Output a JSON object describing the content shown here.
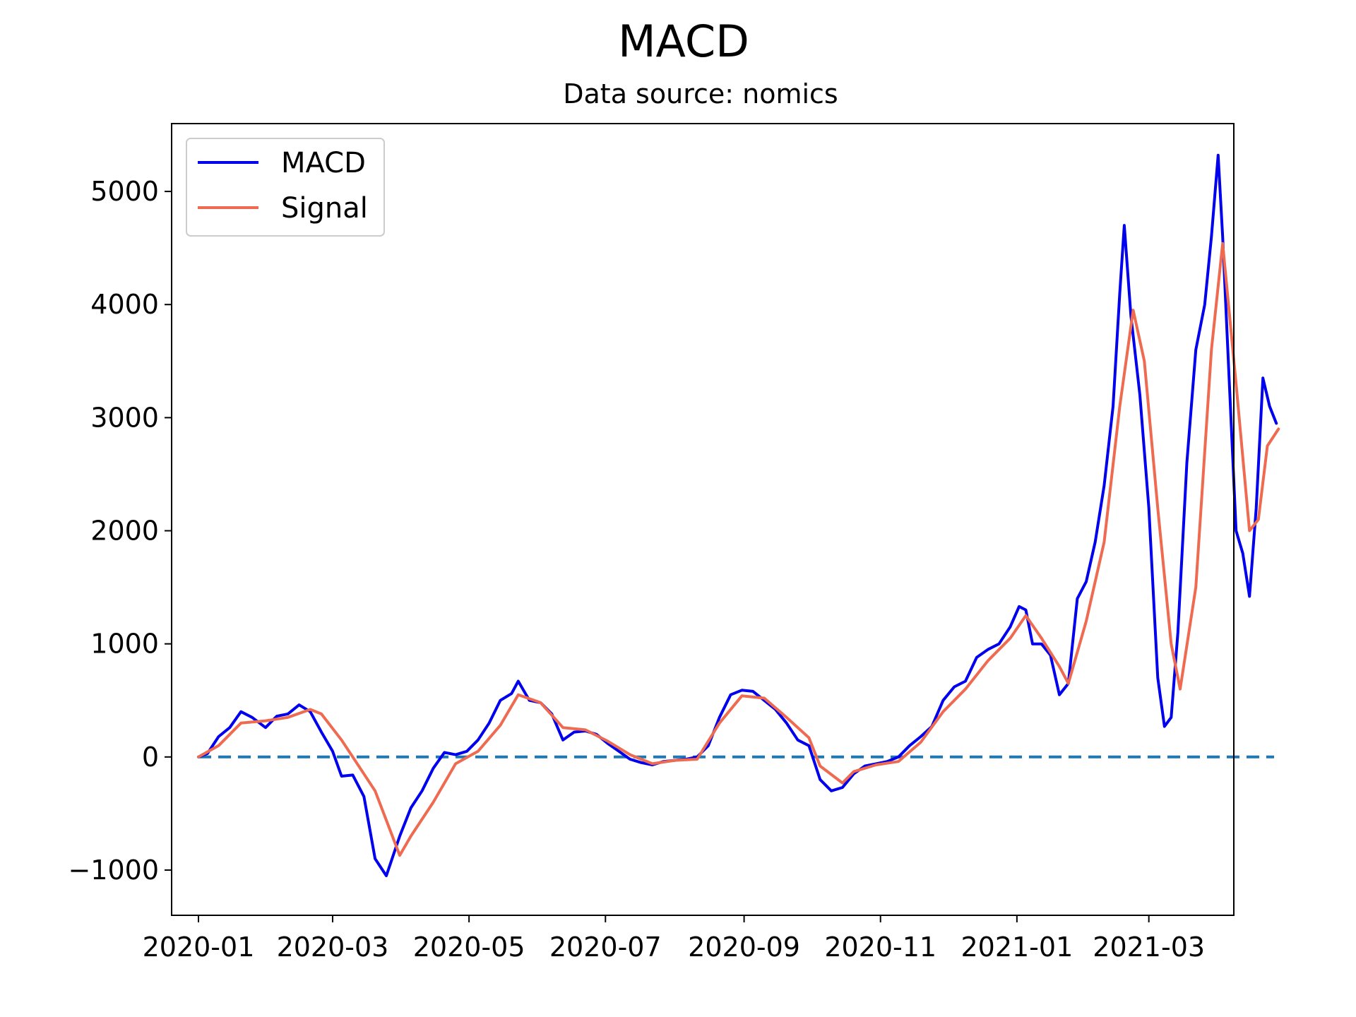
{
  "chart_data": {
    "type": "line",
    "title": "MACD",
    "subtitle": "Data source: nomics",
    "xlabel": "",
    "ylabel": "",
    "x_range": [
      "2019-12-20",
      "2021-04-08"
    ],
    "ylim": [
      -1400,
      5600
    ],
    "x_ticks": [
      "2020-01",
      "2020-03",
      "2020-05",
      "2020-07",
      "2020-09",
      "2020-11",
      "2021-01",
      "2021-03"
    ],
    "x_tick_dates": [
      "2020-01-01",
      "2020-03-01",
      "2020-05-01",
      "2020-07-01",
      "2020-09-01",
      "2020-11-01",
      "2021-01-01",
      "2021-03-01"
    ],
    "y_ticks": [
      -1000,
      0,
      1000,
      2000,
      3000,
      4000,
      5000
    ],
    "y_tick_labels": [
      "−1000",
      "0",
      "1000",
      "2000",
      "3000",
      "4000",
      "5000"
    ],
    "grid": false,
    "legend_position": "top-left",
    "colors": {
      "MACD": "#0000ee",
      "Signal": "#ee6a50",
      "zero_line": "#1f77b4"
    },
    "series": [
      {
        "name": "MACD",
        "points": [
          [
            "2020-01-01",
            0
          ],
          [
            "2020-01-05",
            30
          ],
          [
            "2020-01-10",
            180
          ],
          [
            "2020-01-15",
            260
          ],
          [
            "2020-01-20",
            400
          ],
          [
            "2020-01-25",
            350
          ],
          [
            "2020-01-31",
            260
          ],
          [
            "2020-02-05",
            360
          ],
          [
            "2020-02-10",
            380
          ],
          [
            "2020-02-15",
            460
          ],
          [
            "2020-02-20",
            400
          ],
          [
            "2020-02-25",
            220
          ],
          [
            "2020-03-01",
            50
          ],
          [
            "2020-03-05",
            -170
          ],
          [
            "2020-03-10",
            -160
          ],
          [
            "2020-03-15",
            -350
          ],
          [
            "2020-03-20",
            -900
          ],
          [
            "2020-03-25",
            -1050
          ],
          [
            "2020-03-31",
            -700
          ],
          [
            "2020-04-05",
            -450
          ],
          [
            "2020-04-10",
            -300
          ],
          [
            "2020-04-15",
            -100
          ],
          [
            "2020-04-20",
            40
          ],
          [
            "2020-04-25",
            20
          ],
          [
            "2020-04-30",
            50
          ],
          [
            "2020-05-05",
            150
          ],
          [
            "2020-05-10",
            300
          ],
          [
            "2020-05-15",
            500
          ],
          [
            "2020-05-20",
            560
          ],
          [
            "2020-05-23",
            670
          ],
          [
            "2020-05-28",
            500
          ],
          [
            "2020-06-02",
            480
          ],
          [
            "2020-06-07",
            380
          ],
          [
            "2020-06-12",
            150
          ],
          [
            "2020-06-17",
            220
          ],
          [
            "2020-06-22",
            230
          ],
          [
            "2020-06-27",
            200
          ],
          [
            "2020-07-02",
            120
          ],
          [
            "2020-07-07",
            50
          ],
          [
            "2020-07-12",
            -20
          ],
          [
            "2020-07-17",
            -50
          ],
          [
            "2020-07-22",
            -70
          ],
          [
            "2020-07-27",
            -40
          ],
          [
            "2020-08-01",
            -30
          ],
          [
            "2020-08-06",
            -20
          ],
          [
            "2020-08-11",
            0
          ],
          [
            "2020-08-16",
            100
          ],
          [
            "2020-08-21",
            350
          ],
          [
            "2020-08-26",
            550
          ],
          [
            "2020-08-31",
            590
          ],
          [
            "2020-09-05",
            580
          ],
          [
            "2020-09-10",
            500
          ],
          [
            "2020-09-15",
            420
          ],
          [
            "2020-09-20",
            300
          ],
          [
            "2020-09-25",
            150
          ],
          [
            "2020-09-30",
            100
          ],
          [
            "2020-10-05",
            -200
          ],
          [
            "2020-10-10",
            -300
          ],
          [
            "2020-10-15",
            -270
          ],
          [
            "2020-10-20",
            -150
          ],
          [
            "2020-10-25",
            -80
          ],
          [
            "2020-10-30",
            -60
          ],
          [
            "2020-11-04",
            -40
          ],
          [
            "2020-11-09",
            0
          ],
          [
            "2020-11-14",
            100
          ],
          [
            "2020-11-19",
            180
          ],
          [
            "2020-11-24",
            270
          ],
          [
            "2020-11-29",
            500
          ],
          [
            "2020-12-04",
            620
          ],
          [
            "2020-12-09",
            670
          ],
          [
            "2020-12-14",
            880
          ],
          [
            "2020-12-19",
            950
          ],
          [
            "2020-12-24",
            1000
          ],
          [
            "2020-12-29",
            1150
          ],
          [
            "2021-01-02",
            1330
          ],
          [
            "2021-01-05",
            1300
          ],
          [
            "2021-01-08",
            1000
          ],
          [
            "2021-01-12",
            1000
          ],
          [
            "2021-01-16",
            900
          ],
          [
            "2021-01-20",
            550
          ],
          [
            "2021-01-24",
            650
          ],
          [
            "2021-01-28",
            1400
          ],
          [
            "2021-02-01",
            1550
          ],
          [
            "2021-02-05",
            1900
          ],
          [
            "2021-02-09",
            2400
          ],
          [
            "2021-02-13",
            3100
          ],
          [
            "2021-02-16",
            4100
          ],
          [
            "2021-02-18",
            4700
          ],
          [
            "2021-02-21",
            3900
          ],
          [
            "2021-02-25",
            3200
          ],
          [
            "2021-03-01",
            2200
          ],
          [
            "2021-03-05",
            700
          ],
          [
            "2021-03-08",
            270
          ],
          [
            "2021-03-11",
            350
          ],
          [
            "2021-03-14",
            1100
          ],
          [
            "2021-03-18",
            2600
          ],
          [
            "2021-03-22",
            3600
          ],
          [
            "2021-03-26",
            4000
          ],
          [
            "2021-03-29",
            4600
          ],
          [
            "2021-04-01",
            5320
          ],
          [
            "2021-04-03",
            4600
          ],
          [
            "2021-04-06",
            3300
          ],
          [
            "2021-04-09",
            2000
          ],
          [
            "2021-04-12",
            1800
          ],
          [
            "2021-04-15",
            1420
          ],
          [
            "2021-04-18",
            2200
          ],
          [
            "2021-04-21",
            3350
          ],
          [
            "2021-04-24",
            3100
          ],
          [
            "2021-04-27",
            2950
          ]
        ]
      },
      {
        "name": "Signal",
        "points": [
          [
            "2020-01-01",
            0
          ],
          [
            "2020-01-10",
            100
          ],
          [
            "2020-01-20",
            300
          ],
          [
            "2020-01-31",
            320
          ],
          [
            "2020-02-10",
            350
          ],
          [
            "2020-02-20",
            420
          ],
          [
            "2020-02-25",
            380
          ],
          [
            "2020-03-05",
            150
          ],
          [
            "2020-03-15",
            -150
          ],
          [
            "2020-03-20",
            -300
          ],
          [
            "2020-03-31",
            -870
          ],
          [
            "2020-04-05",
            -700
          ],
          [
            "2020-04-15",
            -400
          ],
          [
            "2020-04-25",
            -60
          ],
          [
            "2020-05-05",
            50
          ],
          [
            "2020-05-15",
            280
          ],
          [
            "2020-05-23",
            550
          ],
          [
            "2020-06-02",
            480
          ],
          [
            "2020-06-12",
            260
          ],
          [
            "2020-06-22",
            240
          ],
          [
            "2020-07-02",
            140
          ],
          [
            "2020-07-12",
            20
          ],
          [
            "2020-07-22",
            -60
          ],
          [
            "2020-08-01",
            -30
          ],
          [
            "2020-08-11",
            -20
          ],
          [
            "2020-08-21",
            300
          ],
          [
            "2020-08-31",
            540
          ],
          [
            "2020-09-10",
            520
          ],
          [
            "2020-09-20",
            350
          ],
          [
            "2020-09-30",
            170
          ],
          [
            "2020-10-05",
            -80
          ],
          [
            "2020-10-15",
            -230
          ],
          [
            "2020-10-20",
            -130
          ],
          [
            "2020-10-30",
            -70
          ],
          [
            "2020-11-09",
            -40
          ],
          [
            "2020-11-19",
            130
          ],
          [
            "2020-11-29",
            400
          ],
          [
            "2020-12-09",
            600
          ],
          [
            "2020-12-19",
            850
          ],
          [
            "2020-12-29",
            1050
          ],
          [
            "2021-01-05",
            1250
          ],
          [
            "2021-01-12",
            1050
          ],
          [
            "2021-01-20",
            800
          ],
          [
            "2021-01-24",
            650
          ],
          [
            "2021-02-01",
            1200
          ],
          [
            "2021-02-09",
            1900
          ],
          [
            "2021-02-16",
            3100
          ],
          [
            "2021-02-22",
            3950
          ],
          [
            "2021-02-27",
            3500
          ],
          [
            "2021-03-05",
            2200
          ],
          [
            "2021-03-11",
            1000
          ],
          [
            "2021-03-15",
            600
          ],
          [
            "2021-03-22",
            1500
          ],
          [
            "2021-03-29",
            3600
          ],
          [
            "2021-04-03",
            4540
          ],
          [
            "2021-04-09",
            3300
          ],
          [
            "2021-04-15",
            2000
          ],
          [
            "2021-04-19",
            2100
          ],
          [
            "2021-04-23",
            2750
          ],
          [
            "2021-04-28",
            2900
          ]
        ]
      }
    ],
    "reference_line": {
      "y": 0,
      "x_start": "2020-01-01",
      "x_end": "2021-04-26",
      "style": "dashed"
    }
  }
}
